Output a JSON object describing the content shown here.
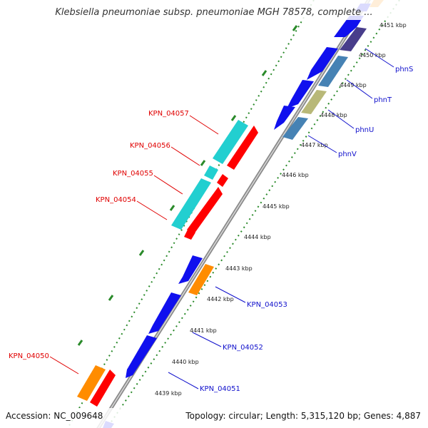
{
  "title": "Klebsiella pneumoniae subsp. pneumoniae MGH 78578, complete ...",
  "footer": {
    "accession": "Accession: NC_009648",
    "summary": "Topology: circular; Length: 5,315,120 bp; Genes: 4,887"
  },
  "colors": {
    "backbone": "#8a8a8a",
    "tick_dots": "#2a8a2a",
    "blue_gene": "#1010ee",
    "orange_gene": "#ff8c00",
    "red_gene": "#ff0000",
    "cyan_gene": "#22cfd0",
    "steel_gene": "#4682b4",
    "slate_gene": "#483d8b",
    "khaki_gene": "#b8b878",
    "label_red": "#e00000",
    "label_blue": "#1010cc"
  },
  "ticks": [
    "4451 kbp",
    "4450 kbp",
    "4449 kbp",
    "4448 kbp",
    "4447 kbp",
    "4446 kbp",
    "4445 kbp",
    "4444 kbp",
    "4443 kbp",
    "4442 kbp",
    "4441 kbp",
    "4440 kbp",
    "4439 kbp"
  ],
  "gene_labels": [
    {
      "text": "phnS",
      "color": "blue"
    },
    {
      "text": "phnT",
      "color": "blue"
    },
    {
      "text": "phnU",
      "color": "blue"
    },
    {
      "text": "phnV",
      "color": "blue"
    },
    {
      "text": "KPN_04057",
      "color": "red"
    },
    {
      "text": "KPN_04056",
      "color": "red"
    },
    {
      "text": "KPN_04055",
      "color": "red"
    },
    {
      "text": "KPN_04054",
      "color": "red"
    },
    {
      "text": "KPN_04053",
      "color": "blue"
    },
    {
      "text": "KPN_04052",
      "color": "blue"
    },
    {
      "text": "KPN_04051",
      "color": "blue"
    },
    {
      "text": "KPN_04050",
      "color": "red"
    }
  ]
}
